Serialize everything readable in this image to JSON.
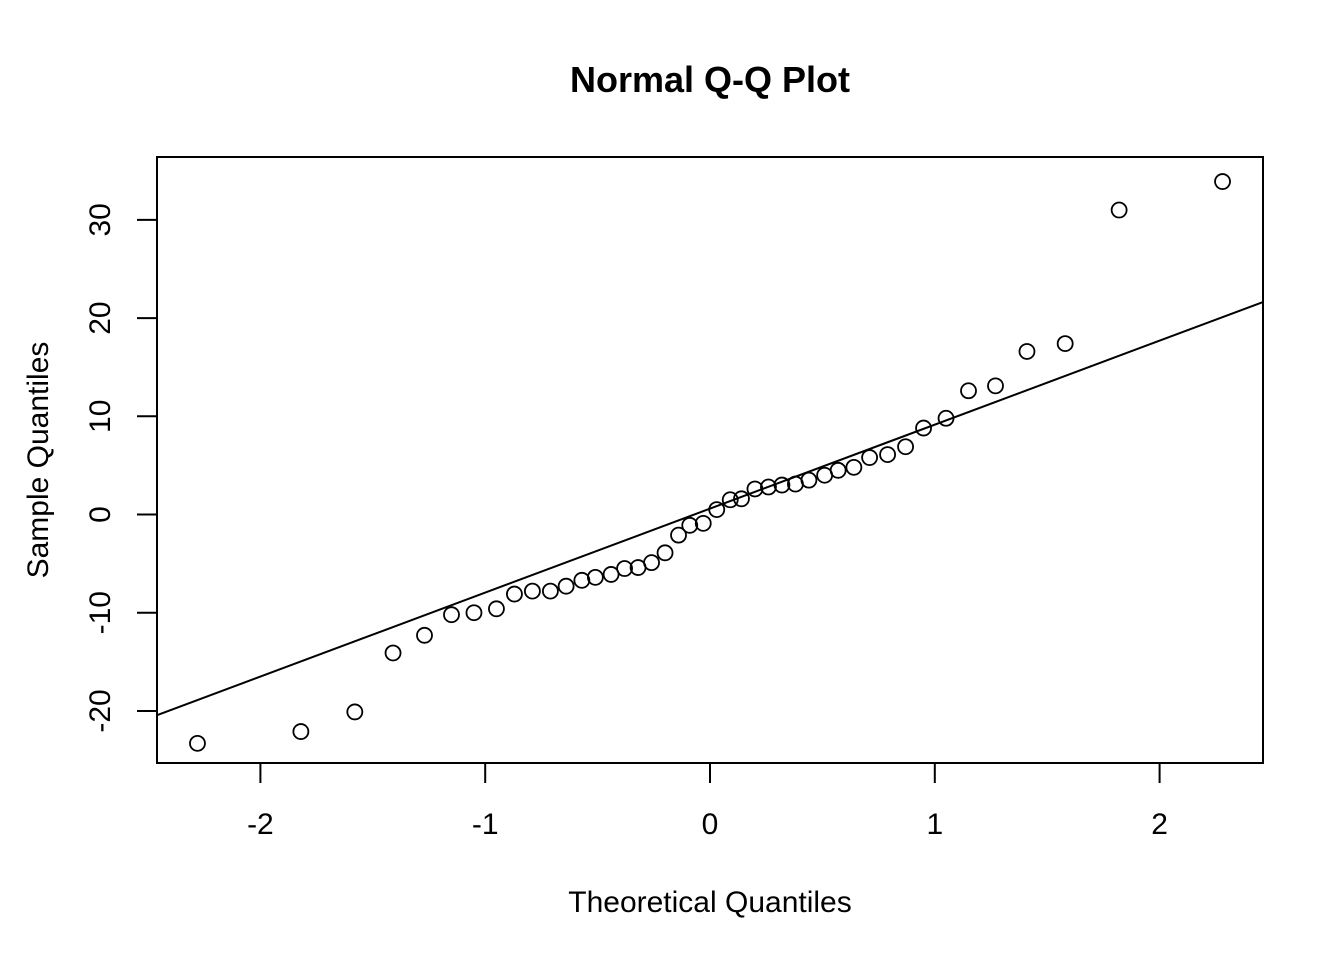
{
  "chart_data": {
    "type": "scatter",
    "title": "Normal Q-Q Plot",
    "xlabel": "Theoretical Quantiles",
    "ylabel": "Sample Quantiles",
    "xlim": [
      -2.46,
      2.46
    ],
    "ylim": [
      -25.3,
      36.4
    ],
    "xticks": [
      -2,
      -1,
      0,
      1,
      2
    ],
    "xtick_labels": [
      "-2",
      "-1",
      "0",
      "1",
      "2"
    ],
    "yticks": [
      -20,
      -10,
      0,
      10,
      20,
      30
    ],
    "ytick_labels": [
      "-20",
      "-10",
      "0",
      "10",
      "20",
      "30"
    ],
    "grid": false,
    "legend": "none",
    "series": [
      {
        "marker": "open-circle",
        "x": [
          -2.28,
          -1.82,
          -1.58,
          -1.41,
          -1.27,
          -1.15,
          -1.05,
          -0.95,
          -0.87,
          -0.79,
          -0.71,
          -0.64,
          -0.57,
          -0.51,
          -0.44,
          -0.38,
          -0.32,
          -0.26,
          -0.2,
          -0.14,
          -0.09,
          -0.03,
          0.03,
          0.09,
          0.14,
          0.2,
          0.26,
          0.32,
          0.38,
          0.44,
          0.51,
          0.57,
          0.64,
          0.71,
          0.79,
          0.87,
          0.95,
          1.05,
          1.15,
          1.27,
          1.41,
          1.58,
          1.82,
          2.28
        ],
        "y": [
          -23.3,
          -22.1,
          -20.1,
          -14.1,
          -12.3,
          -10.2,
          -10.0,
          -9.6,
          -8.1,
          -7.8,
          -7.8,
          -7.3,
          -6.7,
          -6.4,
          -6.1,
          -5.5,
          -5.4,
          -4.9,
          -3.9,
          -2.1,
          -1.1,
          -0.9,
          0.5,
          1.5,
          1.6,
          2.6,
          2.8,
          3.0,
          3.1,
          3.5,
          4.0,
          4.5,
          4.8,
          5.8,
          6.1,
          6.9,
          8.8,
          9.8,
          12.6,
          13.1,
          16.6,
          17.4,
          31.0,
          33.9
        ]
      }
    ],
    "reference_line": {
      "intercept": 0.6,
      "slope": 8.55
    }
  }
}
